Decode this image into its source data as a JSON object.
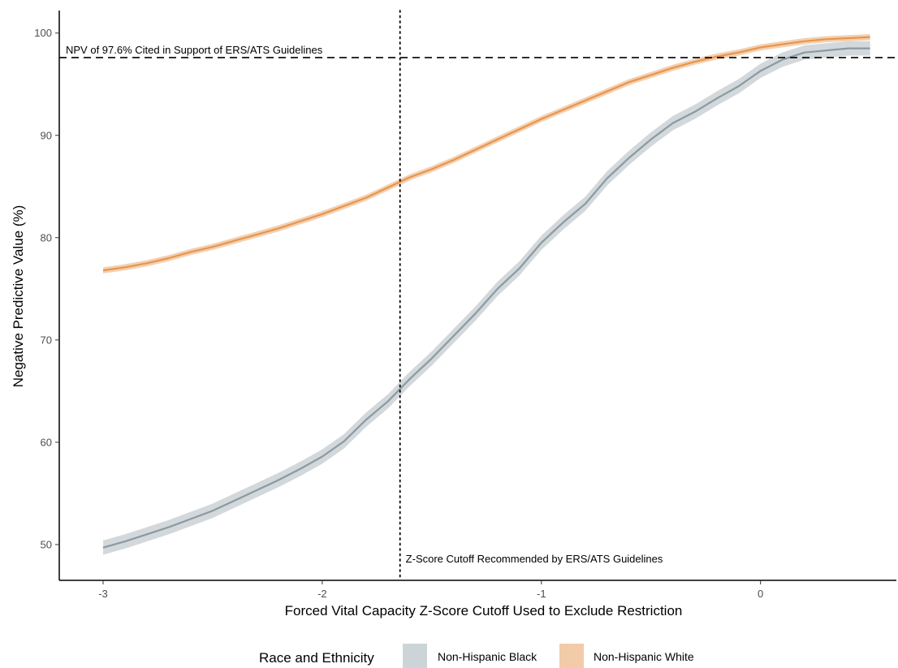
{
  "chart_data": {
    "type": "line",
    "xlabel": "Forced Vital Capacity Z-Score Cutoff Used to Exclude Restriction",
    "ylabel": "Negative Predictive Value (%)",
    "xlim": [
      -3.2,
      0.62
    ],
    "ylim": [
      46.5,
      102.2
    ],
    "x_ticks": [
      {
        "value": -3,
        "label": "-3"
      },
      {
        "value": -2,
        "label": "-2"
      },
      {
        "value": -1,
        "label": "-1"
      },
      {
        "value": 0,
        "label": "0"
      }
    ],
    "y_ticks": [
      {
        "value": 50,
        "label": "50"
      },
      {
        "value": 60,
        "label": "60"
      },
      {
        "value": 70,
        "label": "70"
      },
      {
        "value": 80,
        "label": "80"
      },
      {
        "value": 90,
        "label": "90"
      },
      {
        "value": 100,
        "label": "100"
      }
    ],
    "grid": false,
    "legend": {
      "title": "Race and Ethnicity",
      "position": "bottom"
    },
    "series": [
      {
        "name": "Non-Hispanic Black",
        "color": "#8c9aa0",
        "band_color": "#cdd4d7",
        "points": [
          {
            "x": -3.0,
            "y": 49.7,
            "lo": 49.0,
            "hi": 50.4
          },
          {
            "x": -2.9,
            "y": 50.3,
            "lo": 49.6,
            "hi": 51.0
          },
          {
            "x": -2.8,
            "y": 51.0,
            "lo": 50.3,
            "hi": 51.7
          },
          {
            "x": -2.7,
            "y": 51.7,
            "lo": 51.0,
            "hi": 52.4
          },
          {
            "x": -2.6,
            "y": 52.5,
            "lo": 51.8,
            "hi": 53.2
          },
          {
            "x": -2.5,
            "y": 53.3,
            "lo": 52.6,
            "hi": 54.0
          },
          {
            "x": -2.4,
            "y": 54.3,
            "lo": 53.6,
            "hi": 55.0
          },
          {
            "x": -2.3,
            "y": 55.3,
            "lo": 54.6,
            "hi": 56.0
          },
          {
            "x": -2.2,
            "y": 56.3,
            "lo": 55.6,
            "hi": 57.0
          },
          {
            "x": -2.1,
            "y": 57.4,
            "lo": 56.7,
            "hi": 58.1
          },
          {
            "x": -2.0,
            "y": 58.6,
            "lo": 57.9,
            "hi": 59.3
          },
          {
            "x": -1.9,
            "y": 60.1,
            "lo": 59.4,
            "hi": 60.8
          },
          {
            "x": -1.8,
            "y": 62.2,
            "lo": 61.5,
            "hi": 62.9
          },
          {
            "x": -1.7,
            "y": 64.0,
            "lo": 63.3,
            "hi": 64.7
          },
          {
            "x": -1.6,
            "y": 66.2,
            "lo": 65.5,
            "hi": 66.9
          },
          {
            "x": -1.5,
            "y": 68.2,
            "lo": 67.5,
            "hi": 68.9
          },
          {
            "x": -1.4,
            "y": 70.4,
            "lo": 69.7,
            "hi": 71.1
          },
          {
            "x": -1.3,
            "y": 72.6,
            "lo": 71.9,
            "hi": 73.3
          },
          {
            "x": -1.2,
            "y": 75.0,
            "lo": 74.3,
            "hi": 75.7
          },
          {
            "x": -1.1,
            "y": 77.0,
            "lo": 76.3,
            "hi": 77.7
          },
          {
            "x": -1.0,
            "y": 79.5,
            "lo": 78.8,
            "hi": 80.2
          },
          {
            "x": -0.9,
            "y": 81.5,
            "lo": 80.8,
            "hi": 82.2
          },
          {
            "x": -0.8,
            "y": 83.3,
            "lo": 82.6,
            "hi": 84.0
          },
          {
            "x": -0.7,
            "y": 85.8,
            "lo": 85.1,
            "hi": 86.5
          },
          {
            "x": -0.6,
            "y": 87.8,
            "lo": 87.1,
            "hi": 88.5
          },
          {
            "x": -0.5,
            "y": 89.6,
            "lo": 88.9,
            "hi": 90.3
          },
          {
            "x": -0.4,
            "y": 91.2,
            "lo": 90.5,
            "hi": 91.9
          },
          {
            "x": -0.3,
            "y": 92.3,
            "lo": 91.6,
            "hi": 93.0
          },
          {
            "x": -0.2,
            "y": 93.6,
            "lo": 92.9,
            "hi": 94.3
          },
          {
            "x": -0.1,
            "y": 94.8,
            "lo": 94.1,
            "hi": 95.5
          },
          {
            "x": 0.0,
            "y": 96.3,
            "lo": 95.6,
            "hi": 97.0
          },
          {
            "x": 0.1,
            "y": 97.4,
            "lo": 96.7,
            "hi": 98.1
          },
          {
            "x": 0.2,
            "y": 98.1,
            "lo": 97.4,
            "hi": 98.8
          },
          {
            "x": 0.3,
            "y": 98.3,
            "lo": 97.6,
            "hi": 99.0
          },
          {
            "x": 0.4,
            "y": 98.5,
            "lo": 97.8,
            "hi": 99.2
          },
          {
            "x": 0.5,
            "y": 98.5,
            "lo": 97.8,
            "hi": 99.2
          }
        ]
      },
      {
        "name": "Non-Hispanic White",
        "color": "#e8954b",
        "band_color": "#f2cba9",
        "points": [
          {
            "x": -3.0,
            "y": 76.8,
            "lo": 76.5,
            "hi": 77.1
          },
          {
            "x": -2.9,
            "y": 77.1,
            "lo": 76.8,
            "hi": 77.4
          },
          {
            "x": -2.8,
            "y": 77.5,
            "lo": 77.2,
            "hi": 77.8
          },
          {
            "x": -2.7,
            "y": 78.0,
            "lo": 77.7,
            "hi": 78.3
          },
          {
            "x": -2.6,
            "y": 78.6,
            "lo": 78.3,
            "hi": 78.9
          },
          {
            "x": -2.5,
            "y": 79.1,
            "lo": 78.8,
            "hi": 79.4
          },
          {
            "x": -2.4,
            "y": 79.7,
            "lo": 79.4,
            "hi": 80.0
          },
          {
            "x": -2.3,
            "y": 80.3,
            "lo": 80.0,
            "hi": 80.6
          },
          {
            "x": -2.2,
            "y": 80.9,
            "lo": 80.6,
            "hi": 81.2
          },
          {
            "x": -2.1,
            "y": 81.6,
            "lo": 81.3,
            "hi": 81.9
          },
          {
            "x": -2.0,
            "y": 82.3,
            "lo": 82.0,
            "hi": 82.6
          },
          {
            "x": -1.9,
            "y": 83.1,
            "lo": 82.8,
            "hi": 83.4
          },
          {
            "x": -1.8,
            "y": 83.9,
            "lo": 83.6,
            "hi": 84.2
          },
          {
            "x": -1.7,
            "y": 84.9,
            "lo": 84.6,
            "hi": 85.2
          },
          {
            "x": -1.6,
            "y": 85.9,
            "lo": 85.6,
            "hi": 86.2
          },
          {
            "x": -1.5,
            "y": 86.7,
            "lo": 86.4,
            "hi": 87.0
          },
          {
            "x": -1.4,
            "y": 87.6,
            "lo": 87.3,
            "hi": 87.9
          },
          {
            "x": -1.3,
            "y": 88.6,
            "lo": 88.3,
            "hi": 88.9
          },
          {
            "x": -1.2,
            "y": 89.6,
            "lo": 89.3,
            "hi": 89.9
          },
          {
            "x": -1.1,
            "y": 90.6,
            "lo": 90.3,
            "hi": 90.9
          },
          {
            "x": -1.0,
            "y": 91.6,
            "lo": 91.3,
            "hi": 91.9
          },
          {
            "x": -0.9,
            "y": 92.5,
            "lo": 92.2,
            "hi": 92.8
          },
          {
            "x": -0.8,
            "y": 93.4,
            "lo": 93.1,
            "hi": 93.7
          },
          {
            "x": -0.7,
            "y": 94.3,
            "lo": 94.0,
            "hi": 94.6
          },
          {
            "x": -0.6,
            "y": 95.2,
            "lo": 94.9,
            "hi": 95.5
          },
          {
            "x": -0.5,
            "y": 95.9,
            "lo": 95.6,
            "hi": 96.2
          },
          {
            "x": -0.4,
            "y": 96.6,
            "lo": 96.3,
            "hi": 96.9
          },
          {
            "x": -0.3,
            "y": 97.2,
            "lo": 96.9,
            "hi": 97.5
          },
          {
            "x": -0.2,
            "y": 97.7,
            "lo": 97.4,
            "hi": 98.0
          },
          {
            "x": -0.1,
            "y": 98.1,
            "lo": 97.8,
            "hi": 98.4
          },
          {
            "x": 0.0,
            "y": 98.6,
            "lo": 98.3,
            "hi": 98.9
          },
          {
            "x": 0.1,
            "y": 98.9,
            "lo": 98.6,
            "hi": 99.2
          },
          {
            "x": 0.2,
            "y": 99.2,
            "lo": 98.9,
            "hi": 99.5
          },
          {
            "x": 0.3,
            "y": 99.4,
            "lo": 99.1,
            "hi": 99.7
          },
          {
            "x": 0.4,
            "y": 99.5,
            "lo": 99.2,
            "hi": 99.8
          },
          {
            "x": 0.5,
            "y": 99.6,
            "lo": 99.3,
            "hi": 99.9
          }
        ]
      }
    ],
    "reference_lines": [
      {
        "orientation": "horizontal",
        "value": 97.6,
        "style": "dashed",
        "label": "NPV of 97.6% Cited in Support of ERS/ATS Guidelines"
      },
      {
        "orientation": "vertical",
        "value": -1.645,
        "style": "dotted",
        "label": "Z-Score Cutoff Recommended by ERS/ATS Guidelines"
      }
    ]
  }
}
